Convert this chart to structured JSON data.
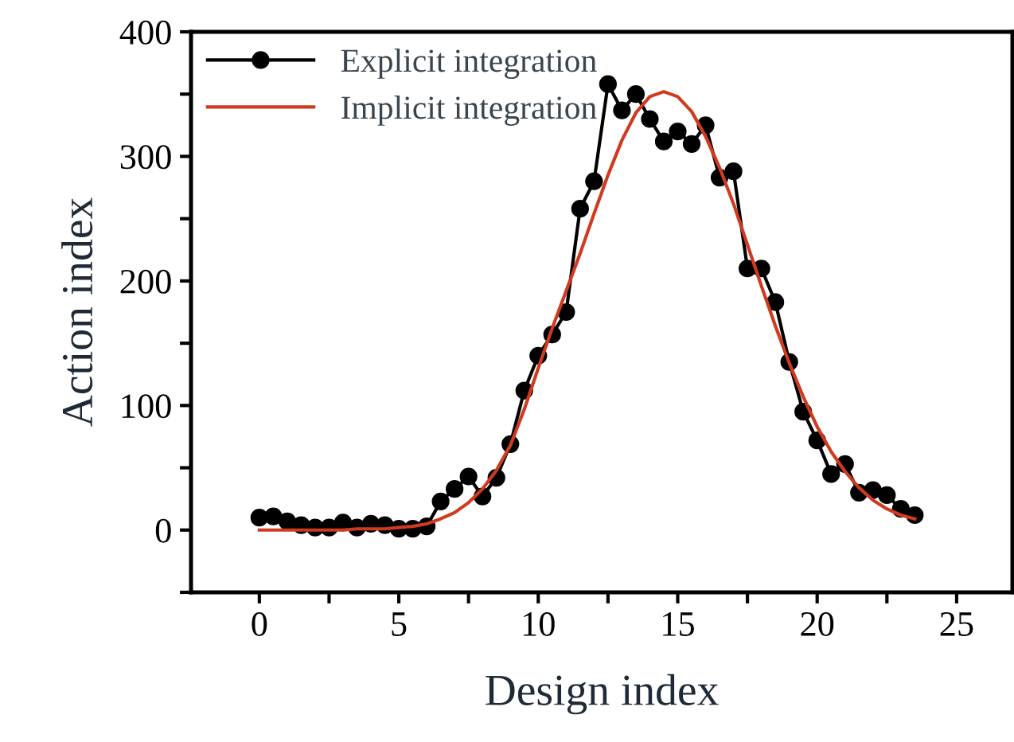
{
  "chart_data": {
    "type": "line",
    "xlabel": "Design index",
    "ylabel": "Action index",
    "xlim": [
      -2.45,
      27
    ],
    "ylim": [
      -50,
      400
    ],
    "xticks": [
      0,
      {
        "value": 2.5,
        "label": null
      },
      5,
      {
        "value": 7.5,
        "label": null
      },
      10,
      {
        "value": 12.5,
        "label": null
      },
      15,
      {
        "value": 17.5,
        "label": null
      },
      20,
      {
        "value": 22.5,
        "label": null
      },
      25
    ],
    "yticks": [
      {
        "value": -50,
        "label": null
      },
      0,
      {
        "value": 50,
        "label": null
      },
      100,
      {
        "value": 150,
        "label": null
      },
      200,
      {
        "value": 250,
        "label": null
      },
      300,
      {
        "value": 350,
        "label": null
      },
      400
    ],
    "grid": false,
    "legend": "top left",
    "x": [
      0,
      0.5,
      1,
      1.5,
      2,
      2.5,
      3,
      3.5,
      4,
      4.5,
      5,
      5.5,
      6,
      6.5,
      7,
      7.5,
      8,
      8.5,
      9,
      9.5,
      10,
      10.5,
      11,
      11.5,
      12,
      12.5,
      13,
      13.5,
      14,
      14.5,
      15,
      15.5,
      16,
      16.5,
      17,
      17.5,
      18,
      18.5,
      19,
      19.5,
      20,
      20.5,
      21,
      21.5,
      22,
      22.5,
      23,
      23.5
    ],
    "series": [
      {
        "name": "Explicit integration",
        "color": "#000000",
        "marker": "circle",
        "values": [
          10,
          11,
          7,
          4,
          2,
          2,
          6,
          2,
          5,
          4,
          1,
          1,
          3,
          23,
          33,
          43,
          27,
          42,
          69,
          112,
          140,
          157,
          175,
          258,
          280,
          358,
          337,
          350,
          330,
          312,
          320,
          310,
          325,
          283,
          288,
          210,
          210,
          183,
          135,
          95,
          72,
          45,
          53,
          30,
          32,
          28,
          17,
          12
        ]
      },
      {
        "name": "Implicit integration",
        "color": "#d03a1e",
        "marker": "none",
        "values": [
          0,
          0,
          0,
          0,
          0,
          0,
          0,
          1,
          1,
          1,
          2,
          3,
          5,
          9,
          14,
          22,
          33,
          48,
          68,
          97,
          130,
          162,
          192,
          222,
          254,
          285,
          313,
          335,
          348,
          352,
          348,
          336,
          316,
          291,
          262,
          229,
          196,
          164,
          134,
          107,
          83,
          63,
          47,
          34,
          24,
          17,
          12,
          9
        ]
      }
    ]
  }
}
